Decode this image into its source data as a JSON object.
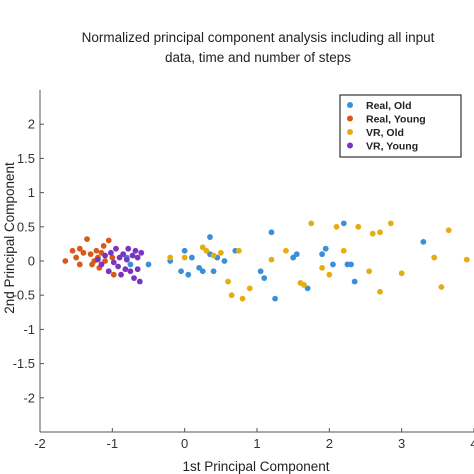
{
  "chart_data": {
    "type": "scatter",
    "title_lines": [
      "Normalized principal component analysis including all input",
      "data, time and number of steps"
    ],
    "xlabel": "1st Principal Component",
    "ylabel": "2nd Principal Component",
    "xlim": [
      -2,
      4
    ],
    "ylim": [
      -2.5,
      2.5
    ],
    "xticks": [
      "-2",
      "-1",
      "0",
      "1",
      "2",
      "3",
      "4"
    ],
    "xtick_values": [
      -2,
      -1,
      0,
      1,
      2,
      3,
      4
    ],
    "yticks": [
      "2",
      "1.5",
      "1",
      "0.5",
      "0",
      "-0.5",
      "-1",
      "-1.5",
      "-2"
    ],
    "ytick_values": [
      2,
      1.5,
      1,
      0.5,
      0,
      -0.5,
      -1,
      -1.5,
      -2
    ],
    "grid": false,
    "legend_position": "top-right",
    "series": [
      {
        "name": "Real, Old",
        "color": "#3a8fd9",
        "points": [
          [
            -0.8,
            0.05
          ],
          [
            -0.75,
            -0.05
          ],
          [
            -0.5,
            -0.05
          ],
          [
            -0.2,
            0.0
          ],
          [
            -0.05,
            -0.15
          ],
          [
            0.0,
            0.15
          ],
          [
            0.05,
            -0.2
          ],
          [
            0.1,
            0.05
          ],
          [
            0.2,
            -0.1
          ],
          [
            0.25,
            -0.15
          ],
          [
            0.35,
            0.35
          ],
          [
            0.35,
            0.1
          ],
          [
            0.4,
            -0.15
          ],
          [
            0.45,
            0.05
          ],
          [
            0.55,
            0.0
          ],
          [
            0.7,
            0.15
          ],
          [
            1.05,
            -0.15
          ],
          [
            1.1,
            -0.25
          ],
          [
            1.2,
            0.42
          ],
          [
            1.25,
            -0.55
          ],
          [
            1.5,
            0.05
          ],
          [
            1.55,
            0.1
          ],
          [
            1.7,
            -0.4
          ],
          [
            1.9,
            0.1
          ],
          [
            1.95,
            0.18
          ],
          [
            2.05,
            -0.05
          ],
          [
            2.2,
            0.55
          ],
          [
            2.25,
            -0.05
          ],
          [
            2.3,
            -0.05
          ],
          [
            2.35,
            -0.3
          ],
          [
            3.3,
            0.28
          ]
        ]
      },
      {
        "name": "Real, Young",
        "color": "#d85a1a",
        "points": [
          [
            -1.65,
            0.0
          ],
          [
            -1.55,
            0.15
          ],
          [
            -1.5,
            0.05
          ],
          [
            -1.45,
            0.18
          ],
          [
            -1.45,
            -0.05
          ],
          [
            -1.4,
            0.12
          ],
          [
            -1.35,
            0.32
          ],
          [
            -1.3,
            0.1
          ],
          [
            -1.28,
            -0.05
          ],
          [
            -1.25,
            0.0
          ],
          [
            -1.22,
            0.15
          ],
          [
            -1.2,
            0.05
          ],
          [
            -1.18,
            -0.1
          ],
          [
            -1.15,
            0.12
          ],
          [
            -1.12,
            0.22
          ],
          [
            -1.1,
            0.0
          ],
          [
            -1.05,
            0.3
          ],
          [
            -1.05,
            -0.15
          ],
          [
            -1.0,
            0.05
          ],
          [
            -0.98,
            -0.2
          ]
        ]
      },
      {
        "name": "VR, Old",
        "color": "#e6ad12",
        "points": [
          [
            -0.2,
            0.05
          ],
          [
            0.0,
            0.05
          ],
          [
            0.25,
            0.2
          ],
          [
            0.3,
            0.15
          ],
          [
            0.4,
            0.08
          ],
          [
            0.5,
            0.12
          ],
          [
            0.6,
            -0.3
          ],
          [
            0.65,
            -0.5
          ],
          [
            0.75,
            0.15
          ],
          [
            0.8,
            -0.55
          ],
          [
            0.9,
            -0.4
          ],
          [
            1.2,
            0.02
          ],
          [
            1.4,
            0.15
          ],
          [
            1.6,
            -0.32
          ],
          [
            1.65,
            -0.35
          ],
          [
            1.75,
            0.55
          ],
          [
            1.9,
            -0.1
          ],
          [
            2.0,
            -0.2
          ],
          [
            2.1,
            0.5
          ],
          [
            2.2,
            0.15
          ],
          [
            2.4,
            0.5
          ],
          [
            2.55,
            -0.15
          ],
          [
            2.6,
            0.4
          ],
          [
            2.7,
            0.42
          ],
          [
            2.7,
            -0.45
          ],
          [
            2.85,
            0.55
          ],
          [
            3.0,
            -0.18
          ],
          [
            3.45,
            0.05
          ],
          [
            3.55,
            -0.38
          ],
          [
            3.65,
            0.45
          ],
          [
            3.9,
            0.02
          ]
        ]
      },
      {
        "name": "VR, Young",
        "color": "#7a35c0",
        "points": [
          [
            -1.2,
            0.02
          ],
          [
            -1.15,
            -0.05
          ],
          [
            -1.1,
            0.08
          ],
          [
            -1.05,
            -0.15
          ],
          [
            -1.02,
            0.12
          ],
          [
            -0.98,
            -0.02
          ],
          [
            -0.95,
            0.18
          ],
          [
            -0.92,
            -0.08
          ],
          [
            -0.9,
            0.05
          ],
          [
            -0.88,
            -0.2
          ],
          [
            -0.85,
            0.1
          ],
          [
            -0.82,
            -0.12
          ],
          [
            -0.8,
            0.02
          ],
          [
            -0.78,
            0.18
          ],
          [
            -0.75,
            -0.15
          ],
          [
            -0.72,
            0.08
          ],
          [
            -0.7,
            -0.25
          ],
          [
            -0.68,
            0.15
          ],
          [
            -0.65,
            -0.12
          ],
          [
            -0.65,
            0.05
          ],
          [
            -0.62,
            -0.3
          ],
          [
            -0.6,
            0.12
          ]
        ]
      }
    ]
  }
}
